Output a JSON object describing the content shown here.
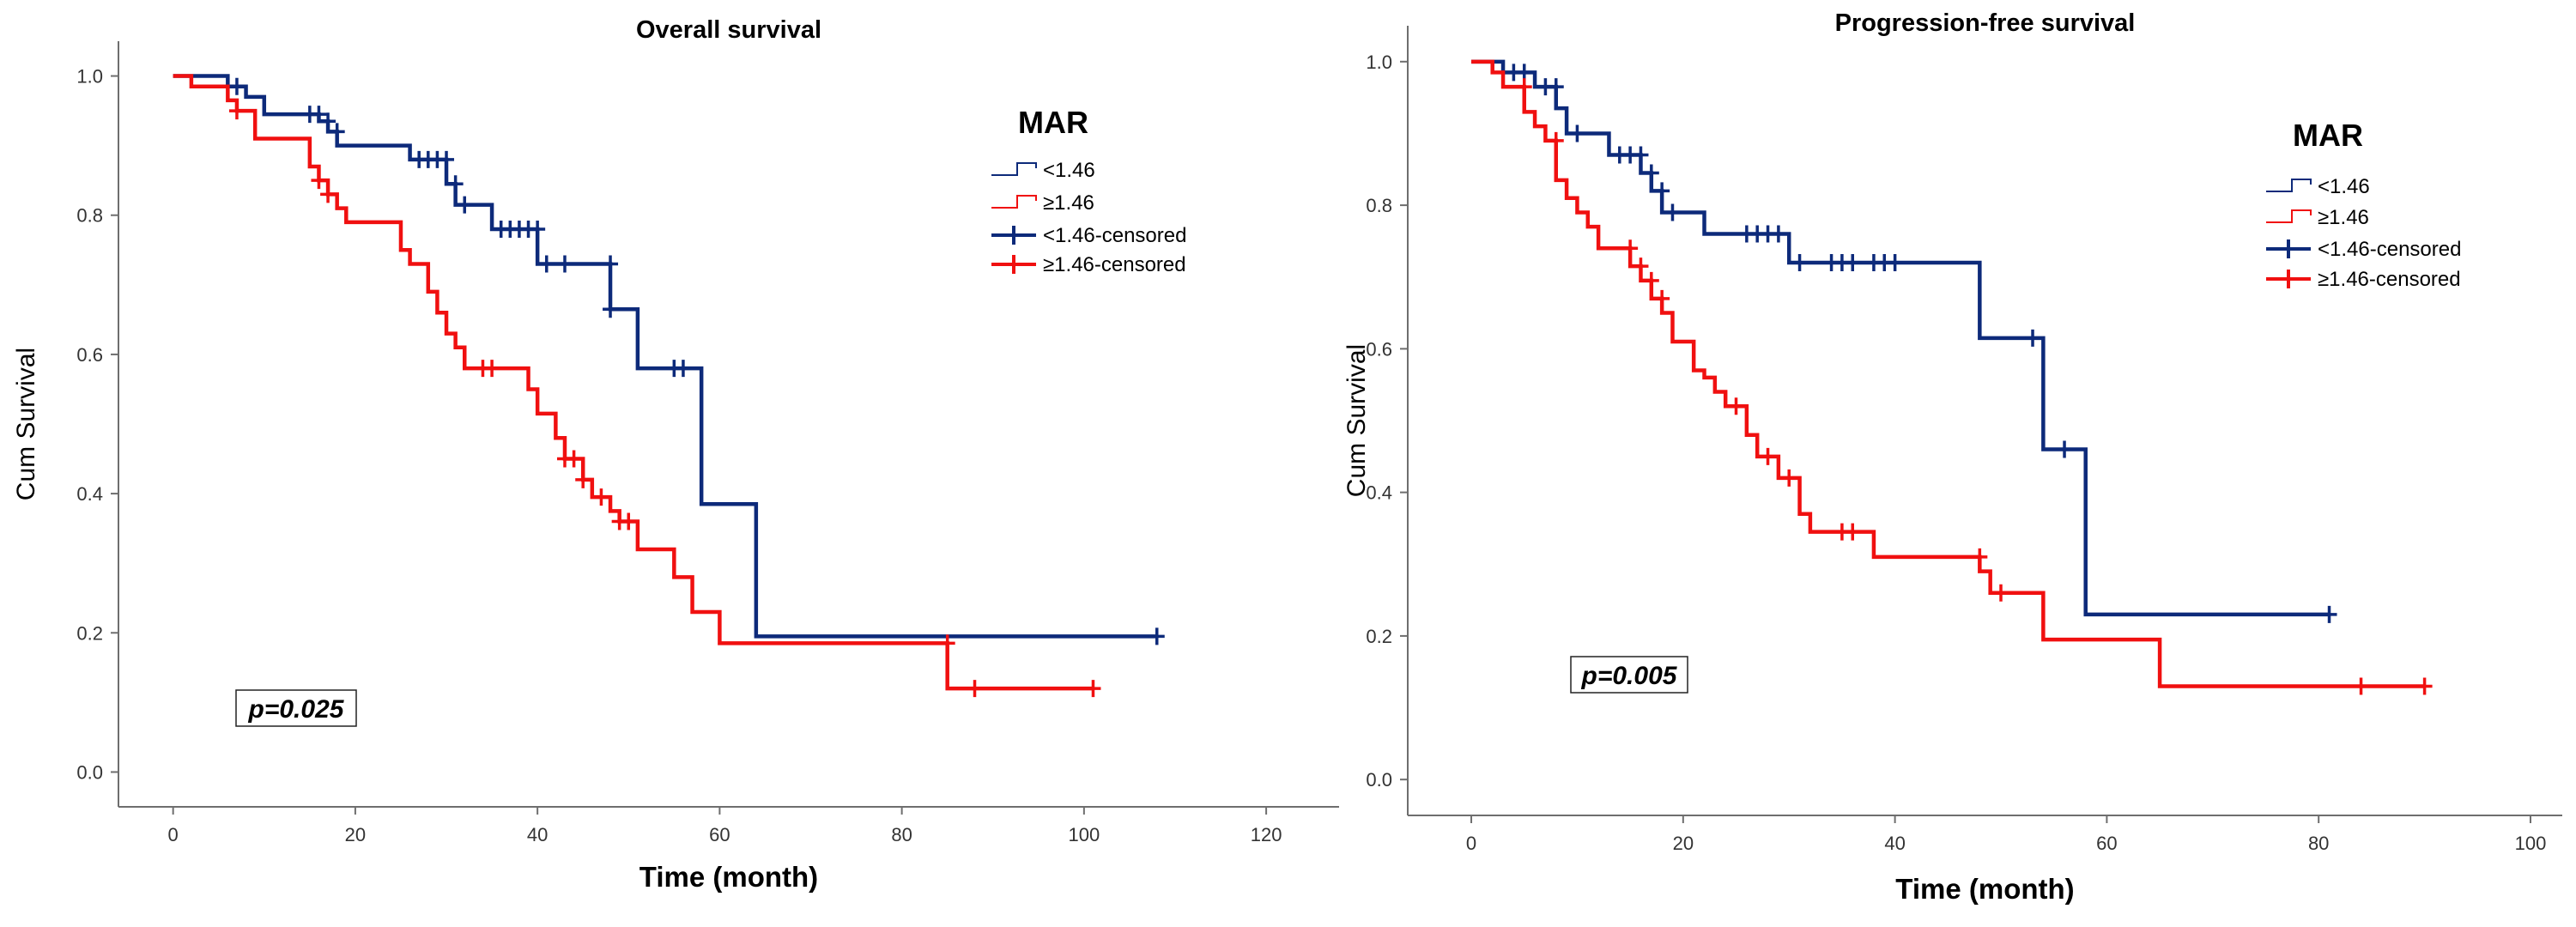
{
  "chart_data": [
    {
      "type": "line",
      "title": "Overall survival",
      "xlabel": "Time (month)",
      "ylabel": "Cum Survival",
      "xlim": [
        -6,
        128
      ],
      "ylim": [
        -0.05,
        1.05
      ],
      "xticks": [
        0,
        20,
        40,
        60,
        80,
        100,
        120
      ],
      "xtick_labels": [
        "0",
        "20",
        "40",
        "60",
        "80",
        "100",
        "120"
      ],
      "yticks": [
        0.0,
        0.2,
        0.4,
        0.6,
        0.8,
        1.0
      ],
      "ytick_labels": [
        "0.0",
        "0.2",
        "0.4",
        "0.6",
        "0.8",
        "1.0"
      ],
      "annotation": "p=0.025",
      "legend": {
        "title": "MAR",
        "position": "top-right",
        "entries": [
          "<1.46",
          "≥1.46",
          "<1.46-censored",
          "≥1.46-censored"
        ]
      },
      "series": [
        {
          "name": "<1.46",
          "color": "#0d2a7a",
          "steps": [
            [
              0,
              1.0
            ],
            [
              6,
              0.985
            ],
            [
              8,
              0.97
            ],
            [
              10,
              0.945
            ],
            [
              16,
              0.935
            ],
            [
              17,
              0.92
            ],
            [
              18,
              0.9
            ],
            [
              26,
              0.88
            ],
            [
              30,
              0.845
            ],
            [
              31,
              0.815
            ],
            [
              35,
              0.78
            ],
            [
              40,
              0.73
            ],
            [
              48,
              0.665
            ],
            [
              51,
              0.58
            ],
            [
              58,
              0.385
            ],
            [
              64,
              0.195
            ]
          ],
          "end_x": 108,
          "censored": [
            [
              7,
              0.985
            ],
            [
              15,
              0.945
            ],
            [
              16,
              0.945
            ],
            [
              17,
              0.935
            ],
            [
              18,
              0.92
            ],
            [
              27,
              0.88
            ],
            [
              28,
              0.88
            ],
            [
              29,
              0.88
            ],
            [
              30,
              0.88
            ],
            [
              31,
              0.845
            ],
            [
              32,
              0.815
            ],
            [
              36,
              0.78
            ],
            [
              37,
              0.78
            ],
            [
              38,
              0.78
            ],
            [
              39,
              0.78
            ],
            [
              40,
              0.78
            ],
            [
              41,
              0.73
            ],
            [
              43,
              0.73
            ],
            [
              48,
              0.73
            ],
            [
              48,
              0.665
            ],
            [
              55,
              0.58
            ],
            [
              56,
              0.58
            ],
            [
              108,
              0.195
            ]
          ]
        },
        {
          "name": "≥1.46",
          "color": "#f01010",
          "steps": [
            [
              0,
              1.0
            ],
            [
              2,
              0.985
            ],
            [
              6,
              0.965
            ],
            [
              7,
              0.95
            ],
            [
              9,
              0.91
            ],
            [
              15,
              0.87
            ],
            [
              16,
              0.85
            ],
            [
              17,
              0.83
            ],
            [
              18,
              0.81
            ],
            [
              19,
              0.79
            ],
            [
              25,
              0.75
            ],
            [
              26,
              0.73
            ],
            [
              28,
              0.69
            ],
            [
              29,
              0.66
            ],
            [
              30,
              0.63
            ],
            [
              31,
              0.61
            ],
            [
              32,
              0.58
            ],
            [
              39,
              0.55
            ],
            [
              40,
              0.515
            ],
            [
              42,
              0.48
            ],
            [
              43,
              0.45
            ],
            [
              45,
              0.42
            ],
            [
              46,
              0.395
            ],
            [
              48,
              0.375
            ],
            [
              49,
              0.36
            ],
            [
              51,
              0.32
            ],
            [
              55,
              0.28
            ],
            [
              57,
              0.23
            ],
            [
              60,
              0.185
            ],
            [
              85,
              0.12
            ]
          ],
          "end_x": 101,
          "censored": [
            [
              7,
              0.95
            ],
            [
              16,
              0.85
            ],
            [
              17,
              0.83
            ],
            [
              34,
              0.58
            ],
            [
              35,
              0.58
            ],
            [
              43,
              0.45
            ],
            [
              44,
              0.45
            ],
            [
              45,
              0.42
            ],
            [
              47,
              0.395
            ],
            [
              49,
              0.36
            ],
            [
              50,
              0.36
            ],
            [
              85,
              0.185
            ],
            [
              88,
              0.12
            ],
            [
              101,
              0.12
            ]
          ]
        }
      ]
    },
    {
      "type": "line",
      "title": "Progression-free survival",
      "xlabel": "Time (month)",
      "ylabel": "Cum Survival",
      "xlim": [
        -6,
        103
      ],
      "ylim": [
        -0.05,
        1.05
      ],
      "xticks": [
        0,
        20,
        40,
        60,
        80,
        100
      ],
      "xtick_labels": [
        "0",
        "20",
        "40",
        "60",
        "80",
        "100"
      ],
      "yticks": [
        0.0,
        0.2,
        0.4,
        0.6,
        0.8,
        1.0
      ],
      "ytick_labels": [
        "0.0",
        "0.2",
        "0.4",
        "0.6",
        "0.8",
        "1.0"
      ],
      "annotation": "p=0.005",
      "legend": {
        "title": "MAR",
        "position": "top-right",
        "entries": [
          "<1.46",
          "≥1.46",
          "<1.46-censored",
          "≥1.46-censored"
        ]
      },
      "series": [
        {
          "name": "<1.46",
          "color": "#0d2a7a",
          "steps": [
            [
              0,
              1.0
            ],
            [
              3,
              0.985
            ],
            [
              6,
              0.965
            ],
            [
              8,
              0.935
            ],
            [
              9,
              0.9
            ],
            [
              13,
              0.87
            ],
            [
              16,
              0.845
            ],
            [
              17,
              0.82
            ],
            [
              18,
              0.79
            ],
            [
              22,
              0.76
            ],
            [
              30,
              0.72
            ],
            [
              48,
              0.615
            ],
            [
              54,
              0.46
            ],
            [
              58,
              0.23
            ]
          ],
          "end_x": 81,
          "censored": [
            [
              4,
              0.985
            ],
            [
              5,
              0.985
            ],
            [
              7,
              0.965
            ],
            [
              8,
              0.965
            ],
            [
              10,
              0.9
            ],
            [
              14,
              0.87
            ],
            [
              15,
              0.87
            ],
            [
              16,
              0.87
            ],
            [
              17,
              0.845
            ],
            [
              18,
              0.82
            ],
            [
              19,
              0.79
            ],
            [
              26,
              0.76
            ],
            [
              27,
              0.76
            ],
            [
              28,
              0.76
            ],
            [
              29,
              0.76
            ],
            [
              31,
              0.72
            ],
            [
              34,
              0.72
            ],
            [
              35,
              0.72
            ],
            [
              36,
              0.72
            ],
            [
              38,
              0.72
            ],
            [
              39,
              0.72
            ],
            [
              40,
              0.72
            ],
            [
              53,
              0.615
            ],
            [
              56,
              0.46
            ],
            [
              81,
              0.23
            ]
          ]
        },
        {
          "name": "≥1.46",
          "color": "#f01010",
          "steps": [
            [
              0,
              1.0
            ],
            [
              2,
              0.985
            ],
            [
              3,
              0.965
            ],
            [
              5,
              0.93
            ],
            [
              6,
              0.91
            ],
            [
              7,
              0.89
            ],
            [
              8,
              0.835
            ],
            [
              9,
              0.81
            ],
            [
              10,
              0.79
            ],
            [
              11,
              0.77
            ],
            [
              12,
              0.74
            ],
            [
              15,
              0.715
            ],
            [
              16,
              0.695
            ],
            [
              17,
              0.67
            ],
            [
              18,
              0.65
            ],
            [
              19,
              0.61
            ],
            [
              21,
              0.57
            ],
            [
              22,
              0.56
            ],
            [
              23,
              0.54
            ],
            [
              24,
              0.52
            ],
            [
              26,
              0.48
            ],
            [
              27,
              0.45
            ],
            [
              29,
              0.42
            ],
            [
              31,
              0.37
            ],
            [
              32,
              0.345
            ],
            [
              38,
              0.31
            ],
            [
              48,
              0.29
            ],
            [
              49,
              0.26
            ],
            [
              54,
              0.195
            ],
            [
              65,
              0.13
            ]
          ],
          "end_x": 90,
          "censored": [
            [
              5,
              0.965
            ],
            [
              8,
              0.89
            ],
            [
              15,
              0.74
            ],
            [
              16,
              0.715
            ],
            [
              17,
              0.695
            ],
            [
              18,
              0.67
            ],
            [
              25,
              0.52
            ],
            [
              28,
              0.45
            ],
            [
              30,
              0.42
            ],
            [
              35,
              0.345
            ],
            [
              36,
              0.345
            ],
            [
              48,
              0.31
            ],
            [
              50,
              0.26
            ],
            [
              84,
              0.13
            ],
            [
              90,
              0.13
            ]
          ]
        }
      ]
    }
  ]
}
